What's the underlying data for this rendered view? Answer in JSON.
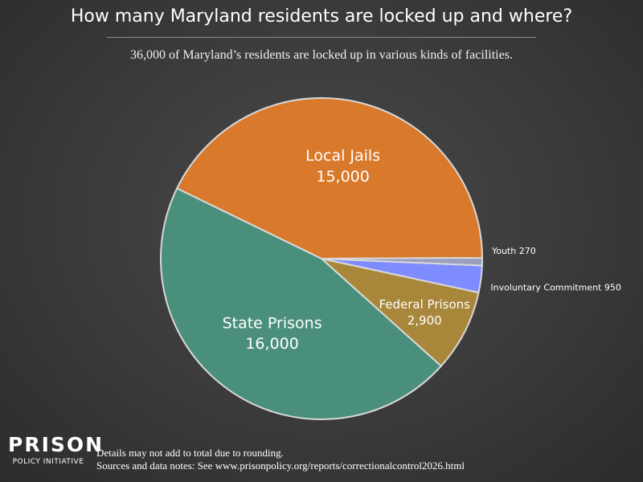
{
  "title": "How many Maryland residents are locked up and where?",
  "subtitle": "36,000 of Maryland’s residents are locked up in various kinds of facilities.",
  "chart_data": {
    "type": "pie",
    "slices": [
      {
        "name": "Local Jails",
        "value": 15000,
        "label": "15,000",
        "color": "#d9792b"
      },
      {
        "name": "Youth",
        "value": 270,
        "label": "270",
        "color": "#9a9fbf"
      },
      {
        "name": "Involuntary Commitment",
        "value": 950,
        "label": "950",
        "color": "#7f8cff"
      },
      {
        "name": "Federal Prisons",
        "value": 2900,
        "label": "2,900",
        "color": "#a8873a"
      },
      {
        "name": "State Prisons",
        "value": 16000,
        "label": "16,000",
        "color": "#4a8f7b"
      }
    ],
    "outer_labels": [
      "Youth 270",
      "Involuntary Commitment 950"
    ]
  },
  "logo": {
    "line1": "PRISON",
    "line2": "POLICY INITIATIVE"
  },
  "notes": {
    "line1": "Details may not add to total due to rounding.",
    "line2": "Sources and data notes: See www.prisonpolicy.org/reports/correctionalcontrol2026.html"
  }
}
